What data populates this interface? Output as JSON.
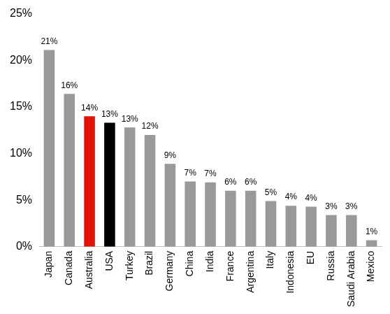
{
  "chart_data": {
    "type": "bar",
    "categories": [
      "Japan",
      "Canada",
      "Australia",
      "USA",
      "Turkey",
      "Brazil",
      "Germany",
      "China",
      "India",
      "France",
      "Argentina",
      "Italy",
      "Indonesia",
      "EU",
      "Russia",
      "Saudi Arabia",
      "Mexico"
    ],
    "values": [
      21.1,
      16.4,
      14.0,
      13.3,
      12.8,
      12.0,
      8.9,
      7.0,
      6.9,
      6.0,
      6.0,
      4.9,
      4.4,
      4.3,
      3.4,
      3.4,
      0.7
    ],
    "value_labels": [
      "21%",
      "16%",
      "14%",
      "13%",
      "13%",
      "12%",
      "9%",
      "7%",
      "7%",
      "6%",
      "6%",
      "5%",
      "4%",
      "4%",
      "3%",
      "3%",
      "1%"
    ],
    "colors": [
      "#999999",
      "#999999",
      "#e3120b",
      "#000000",
      "#999999",
      "#999999",
      "#999999",
      "#999999",
      "#999999",
      "#999999",
      "#999999",
      "#999999",
      "#999999",
      "#999999",
      "#999999",
      "#999999",
      "#999999"
    ],
    "ylim": [
      0,
      25
    ],
    "yticks": [
      {
        "value": 0,
        "label": "0%"
      },
      {
        "value": 5,
        "label": "5%"
      },
      {
        "value": 10,
        "label": "10%"
      },
      {
        "value": 15,
        "label": "15%"
      },
      {
        "value": 20,
        "label": "20%"
      },
      {
        "value": 25,
        "label": "25%"
      }
    ],
    "grid": false,
    "data_labels": true
  }
}
